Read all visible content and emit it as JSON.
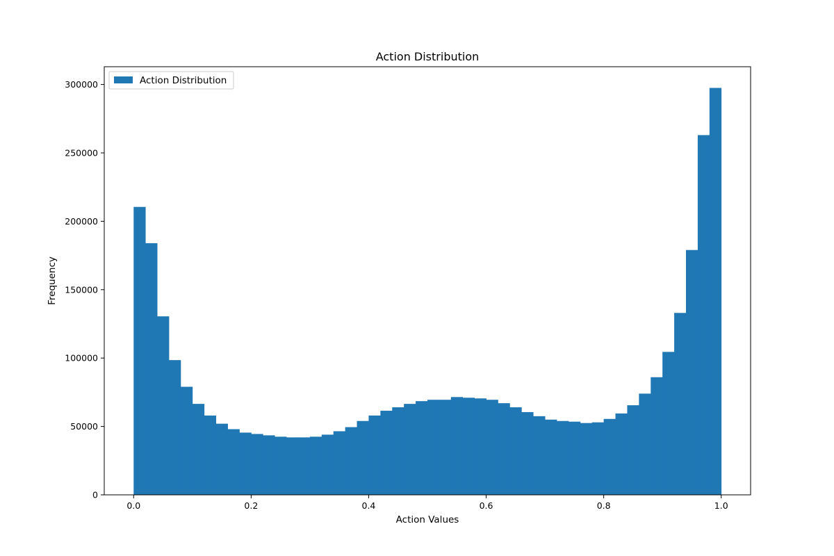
{
  "chart_data": {
    "type": "bar",
    "title": "Action Distribution",
    "xlabel": "Action Values",
    "ylabel": "Frequency",
    "xlim": [
      -0.05,
      1.05
    ],
    "ylim": [
      0,
      313000
    ],
    "bin_edges_start": 0.0,
    "bin_width": 0.02,
    "xticks": [
      0.0,
      0.2,
      0.4,
      0.6,
      0.8,
      1.0
    ],
    "xtick_labels": [
      "0.0",
      "0.2",
      "0.4",
      "0.6",
      "0.8",
      "1.0"
    ],
    "yticks": [
      0,
      50000,
      100000,
      150000,
      200000,
      250000,
      300000
    ],
    "ytick_labels": [
      "0",
      "50000",
      "100000",
      "150000",
      "200000",
      "250000",
      "300000"
    ],
    "grid": false,
    "legend_position": "top-left",
    "series": [
      {
        "name": "Action Distribution",
        "color": "#1f77b4",
        "values": [
          210500,
          184000,
          130500,
          98500,
          79000,
          66500,
          58000,
          52000,
          48000,
          45500,
          44500,
          43500,
          42500,
          42000,
          42000,
          42500,
          44000,
          46500,
          49500,
          54000,
          58000,
          61500,
          64000,
          66500,
          68500,
          69500,
          69500,
          71500,
          71000,
          70500,
          69500,
          67000,
          64000,
          60500,
          57500,
          55000,
          54000,
          53500,
          52500,
          53000,
          55500,
          59500,
          65500,
          74000,
          86000,
          104500,
          133000,
          179000,
          263000,
          297500
        ]
      }
    ]
  }
}
